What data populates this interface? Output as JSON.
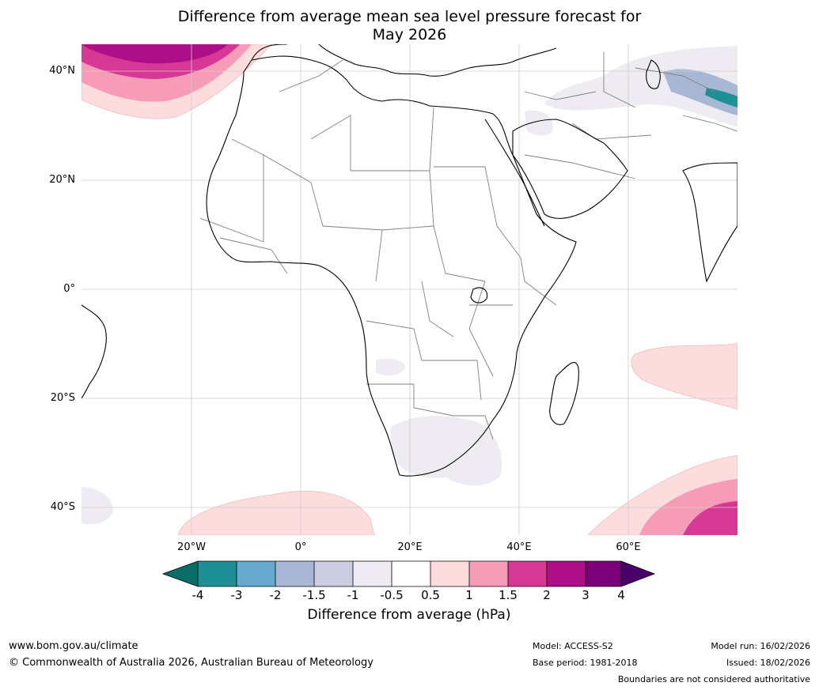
{
  "title_line1": "Difference from average mean sea level pressure forecast for",
  "title_line2": "May 2026",
  "map": {
    "lat_labels": [
      "40°N",
      "20°N",
      "0°",
      "20°S",
      "40°S"
    ],
    "lon_labels": [
      "20°W",
      "0°",
      "20°E",
      "40°E",
      "60°E"
    ],
    "colors": {
      "ocean": "#ffffff",
      "land_line": "#000000",
      "border_line": "#7f7f7f",
      "grid": "#cccccc",
      "pink_light": "#fcdcdc",
      "pink_mid": "#f79cb8",
      "magenta": "#d73896",
      "deep_magenta": "#ad0f86",
      "lavender_light": "#efebf2",
      "blue_grey": "#a8b8d4",
      "teal": "#1c9095"
    }
  },
  "colorbar": {
    "ticks": [
      "-4",
      "-3",
      "-2",
      "-1.5",
      "-1",
      "-0.5",
      "0.5",
      "1",
      "1.5",
      "2",
      "3",
      "4"
    ],
    "colors": [
      "#0b6e66",
      "#1c9095",
      "#67a9cf",
      "#a8b8d4",
      "#cdcde1",
      "#efebf2",
      "#ffffff",
      "#fcdcdc",
      "#f79cb8",
      "#d73896",
      "#ad0f86",
      "#7a0177",
      "#49006a"
    ],
    "label": "Difference from average (hPa)"
  },
  "footer": {
    "url": "www.bom.gov.au/climate",
    "copyright": "© Commonwealth of Australia 2026, Australian Bureau of Meteorology",
    "model": "Model: ACCESS-S2",
    "base_period": "Base period: 1981-2018",
    "model_run": "Model run: 16/02/2026",
    "issued": "Issued: 18/02/2026",
    "boundaries": "Boundaries are not considered authoritative"
  }
}
